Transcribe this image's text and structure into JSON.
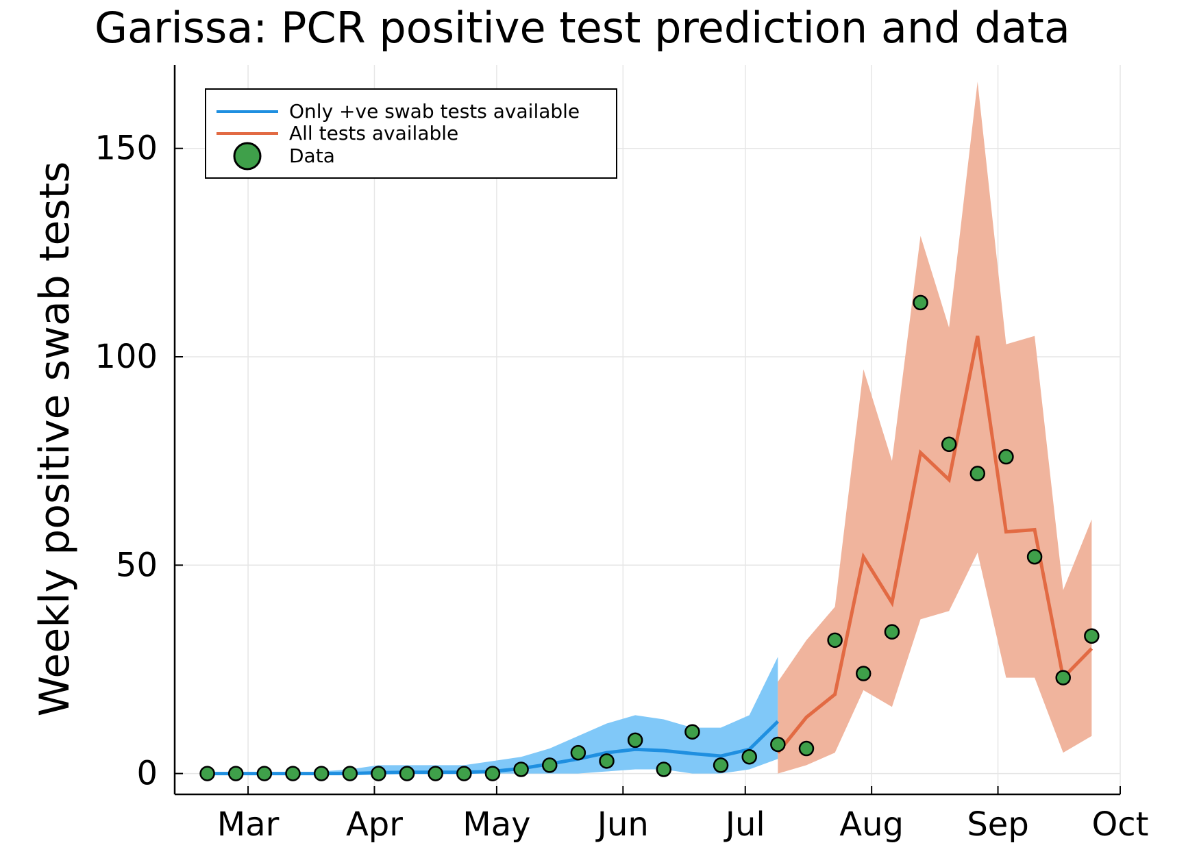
{
  "chart_data": {
    "type": "line",
    "title": "Garissa: PCR positive test prediction and data",
    "xlabel": "",
    "ylabel": "Weekly positive swab tests",
    "x_ticks": [
      "Mar",
      "Apr",
      "May",
      "Jun",
      "Jul",
      "Aug",
      "Sep",
      "Oct"
    ],
    "x_tick_values": [
      {
        "label": "Mar",
        "date": "2020-03-01"
      },
      {
        "label": "Apr",
        "date": "2020-04-01"
      },
      {
        "label": "May",
        "date": "2020-05-01"
      },
      {
        "label": "Jun",
        "date": "2020-06-01"
      },
      {
        "label": "Jul",
        "date": "2020-07-01"
      },
      {
        "label": "Aug",
        "date": "2020-08-01"
      },
      {
        "label": "Sep",
        "date": "2020-09-01"
      },
      {
        "label": "Oct",
        "date": "2020-10-01"
      }
    ],
    "y_ticks": [
      0,
      50,
      100,
      150
    ],
    "xlim": [
      "2020-02-12",
      "2020-10-01"
    ],
    "ylim": [
      -5,
      170
    ],
    "grid": true,
    "legend_position": "top-left",
    "series": [
      {
        "name": "Only +ve swab tests available",
        "kind": "line_with_band",
        "color": "#1f8fe0",
        "band_color": "#80c8f8",
        "x": [
          "2020-02-20",
          "2020-02-27",
          "2020-03-05",
          "2020-03-12",
          "2020-03-19",
          "2020-03-26",
          "2020-04-02",
          "2020-04-09",
          "2020-04-16",
          "2020-04-23",
          "2020-04-30",
          "2020-05-07",
          "2020-05-14",
          "2020-05-21",
          "2020-05-28",
          "2020-06-04",
          "2020-06-11",
          "2020-06-18",
          "2020-06-25",
          "2020-07-02",
          "2020-07-09"
        ],
        "y": [
          0,
          0,
          0,
          0,
          0,
          0,
          0.2,
          0.3,
          0.3,
          0.3,
          0.5,
          1.2,
          2.3,
          3.5,
          5.0,
          5.8,
          5.5,
          4.8,
          4.2,
          5.8,
          12.5
        ],
        "lower": [
          0,
          0,
          0,
          0,
          0,
          0,
          0,
          0,
          0,
          0,
          0,
          0,
          0,
          0,
          0.5,
          1.0,
          1.0,
          0,
          0,
          1.0,
          3.5
        ],
        "upper": [
          0,
          0,
          0,
          0,
          0.5,
          1,
          2,
          2,
          2,
          2,
          3,
          4,
          6,
          9,
          12,
          14,
          13,
          11,
          11,
          14,
          28
        ]
      },
      {
        "name": "All tests available",
        "kind": "line_with_band",
        "color": "#e26a43",
        "band_color": "#f0b49d",
        "x": [
          "2020-07-09",
          "2020-07-16",
          "2020-07-23",
          "2020-07-30",
          "2020-08-06",
          "2020-08-13",
          "2020-08-20",
          "2020-08-27",
          "2020-09-03",
          "2020-09-10",
          "2020-09-17",
          "2020-09-24"
        ],
        "y": [
          5,
          13.5,
          19,
          52,
          41,
          77,
          70.5,
          105,
          58,
          58.5,
          23,
          30
        ],
        "lower": [
          0,
          2,
          5,
          20,
          16,
          37,
          39,
          53,
          23,
          23,
          5,
          9
        ],
        "upper": [
          22,
          32,
          40,
          97,
          75,
          129,
          107,
          166,
          103,
          105,
          44,
          61
        ]
      }
    ],
    "scatter": {
      "name": "Data",
      "color": "#3fa04a",
      "edge_color": "#000000",
      "x": [
        "2020-02-20",
        "2020-02-27",
        "2020-03-05",
        "2020-03-12",
        "2020-03-19",
        "2020-03-26",
        "2020-04-02",
        "2020-04-09",
        "2020-04-16",
        "2020-04-23",
        "2020-04-30",
        "2020-05-07",
        "2020-05-14",
        "2020-05-21",
        "2020-05-28",
        "2020-06-04",
        "2020-06-11",
        "2020-06-18",
        "2020-06-25",
        "2020-07-02",
        "2020-07-09",
        "2020-07-16",
        "2020-07-23",
        "2020-07-30",
        "2020-08-06",
        "2020-08-13",
        "2020-08-20",
        "2020-08-27",
        "2020-09-03",
        "2020-09-10",
        "2020-09-17",
        "2020-09-24"
      ],
      "y": [
        0,
        0,
        0,
        0,
        0,
        0,
        0,
        0,
        0,
        0,
        0,
        1,
        2,
        5,
        3,
        8,
        1,
        10,
        2,
        4,
        7,
        6,
        32,
        24,
        34,
        113,
        79,
        72,
        76,
        52,
        23,
        33
      ]
    }
  }
}
